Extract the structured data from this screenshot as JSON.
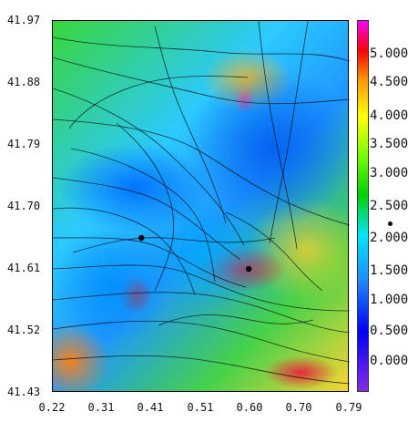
{
  "chart_data": {
    "type": "heatmap",
    "x_ticks": [
      "0.22",
      "0.31",
      "0.41",
      "0.51",
      "0.60",
      "0.70",
      "0.79"
    ],
    "y_ticks": [
      "41.97",
      "41.88",
      "41.79",
      "41.70",
      "41.61",
      "41.52",
      "41.43"
    ],
    "xlim": [
      0.22,
      0.79
    ],
    "ylim": [
      41.43,
      41.97
    ],
    "colorbar": {
      "labels": [
        "5.000",
        "4.500",
        "4.000",
        "3.500",
        "3.000",
        "2.500",
        "2.000",
        "1.500",
        "1.000",
        "0.500",
        "0.000"
      ],
      "colors": [
        "#ff00ff",
        "#ff0000",
        "#ff9900",
        "#ffff00",
        "#7cff00",
        "#00d000",
        "#00e6ff",
        "#1e8cff",
        "#0000ff",
        "#8a2be2"
      ]
    },
    "markers": [
      {
        "x": 0.39,
        "y": 41.655
      },
      {
        "x": 0.596,
        "y": 41.61
      }
    ]
  },
  "colors": {
    "streamline": "#000000",
    "axis": "#000000"
  }
}
